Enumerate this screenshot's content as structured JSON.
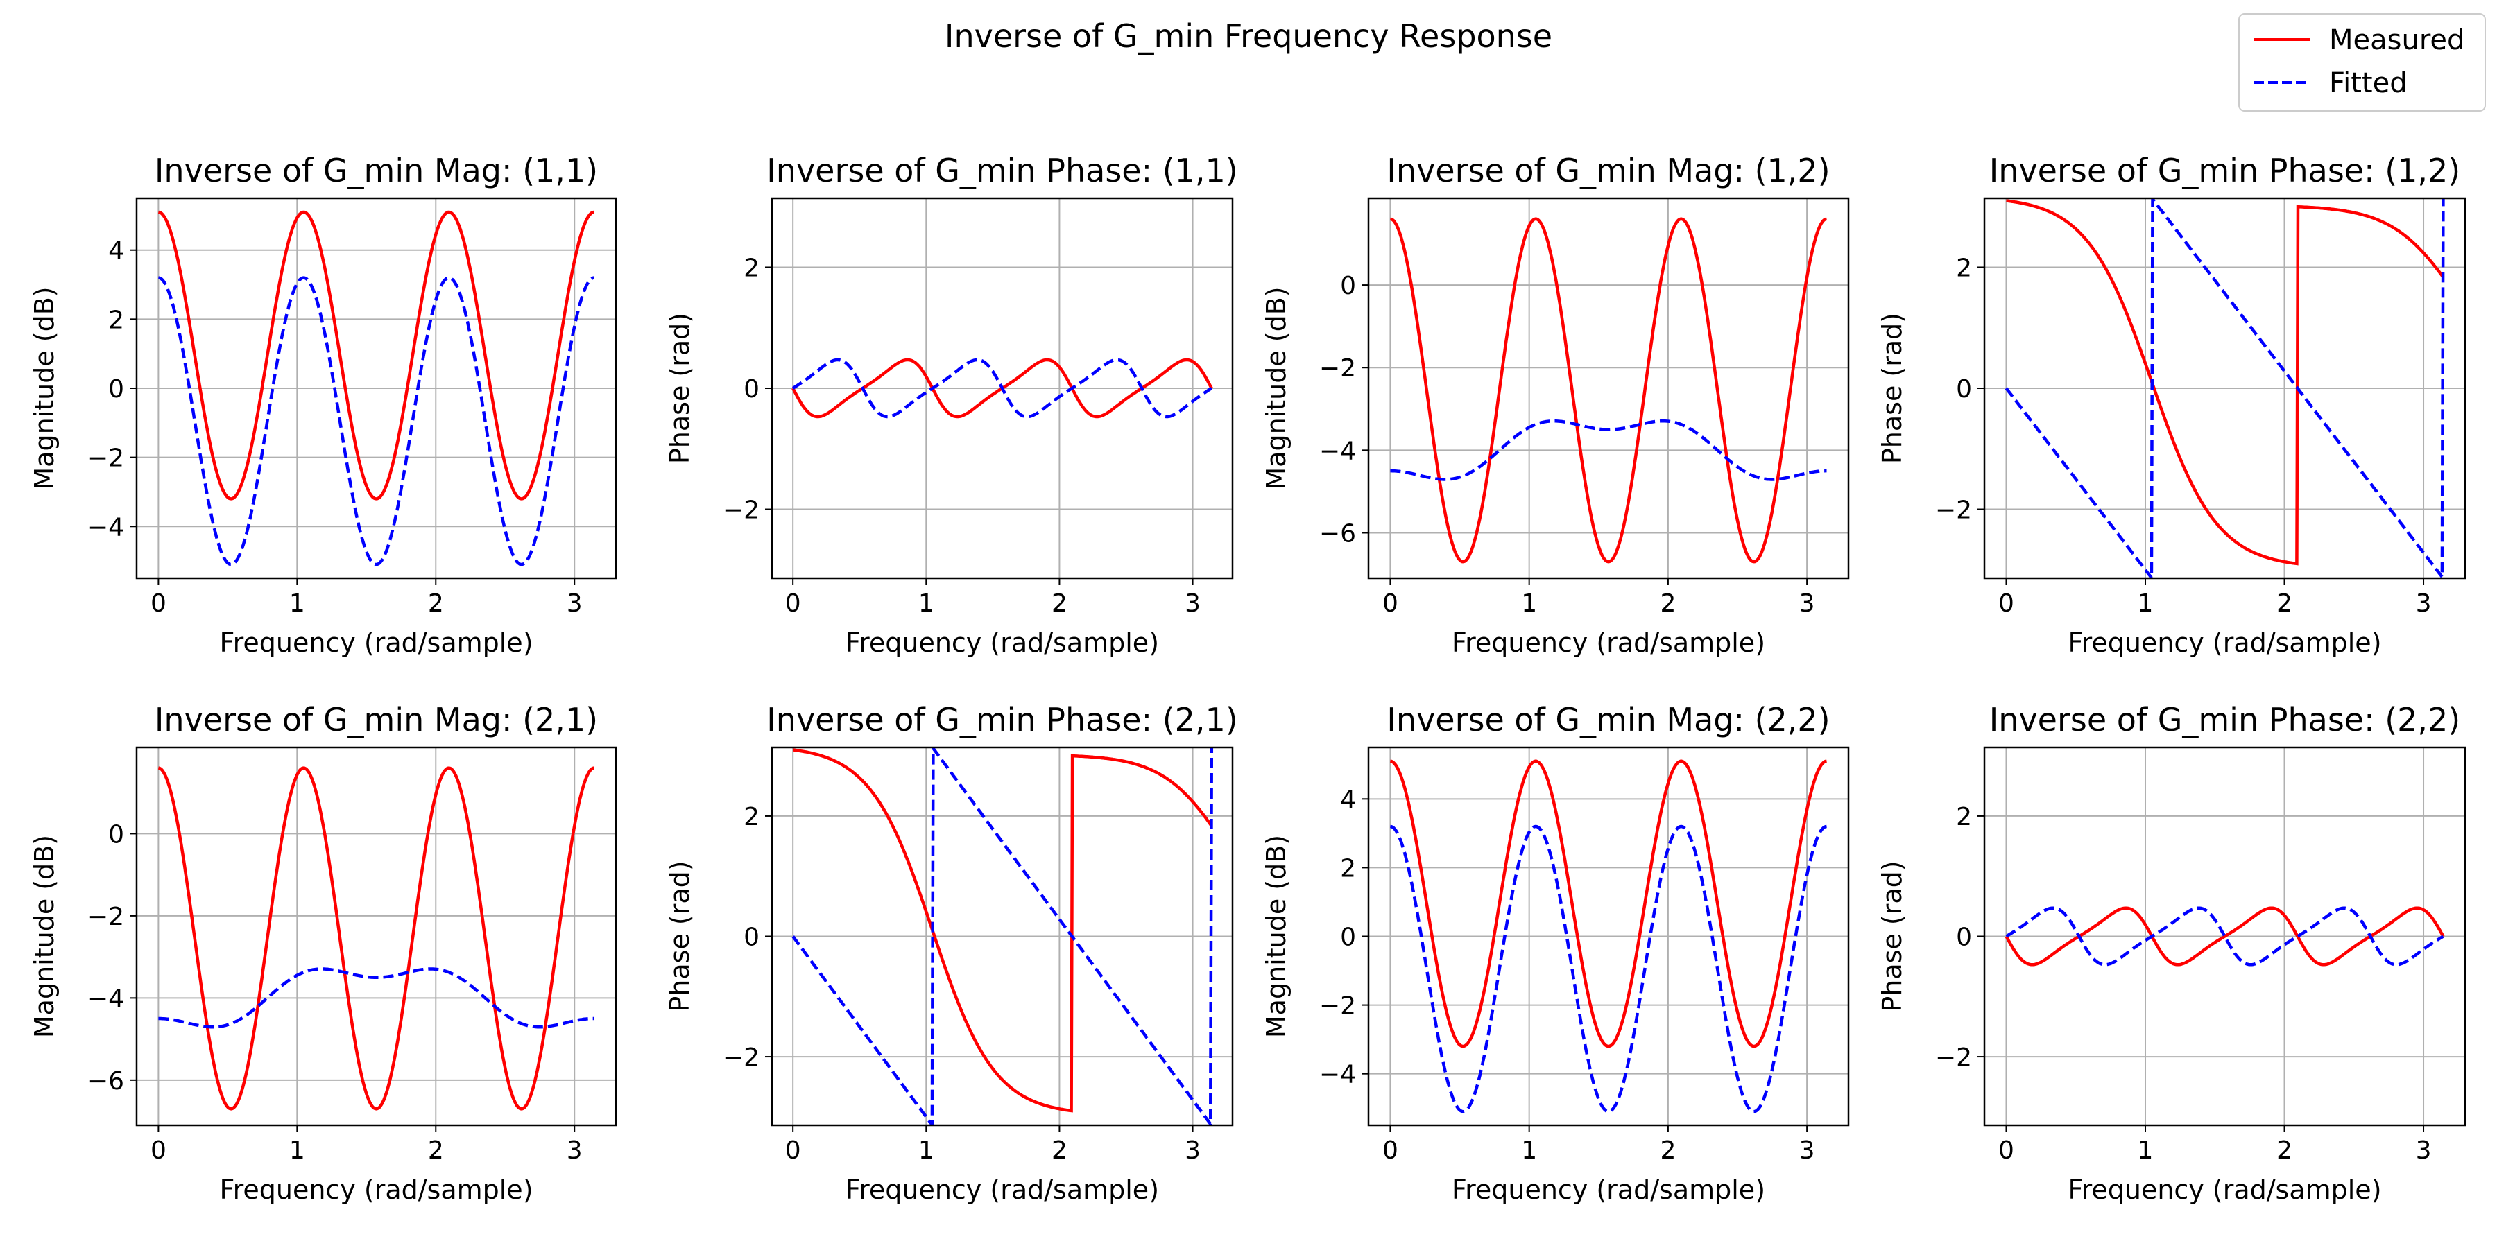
{
  "figure": {
    "title": "Inverse of G_min Frequency Response",
    "legend": {
      "placement": "top-right",
      "entries": [
        {
          "name": "Measured",
          "color": "#ff0000",
          "style": "solid"
        },
        {
          "name": "Fitted",
          "color": "#0000ff",
          "style": "dashed"
        }
      ]
    }
  },
  "chart_data": [
    {
      "type": "line",
      "title": "Inverse of G_min Mag: (1,1)",
      "xlabel": "Frequency (rad/sample)",
      "ylabel": "Magnitude (dB)",
      "xlim": [
        -0.157,
        3.299
      ],
      "ylim": [
        -5.5,
        5.5
      ],
      "xticks": [
        0,
        1,
        2,
        3
      ],
      "yticks": [
        -4,
        -2,
        0,
        2,
        4
      ],
      "grid": true,
      "series": [
        {
          "name": "Measured",
          "color": "#ff0000",
          "style": "solid",
          "curve": "cos",
          "offset": 0.95,
          "amp": 4.15,
          "cycles": 3,
          "phase": 0
        },
        {
          "name": "Fitted",
          "color": "#0000ff",
          "style": "dashed",
          "curve": "cos",
          "offset": -0.95,
          "amp": 4.15,
          "cycles": 3,
          "phase": 0
        }
      ]
    },
    {
      "type": "line",
      "title": "Inverse of G_min Phase: (1,1)",
      "xlabel": "Frequency (rad/sample)",
      "ylabel": "Phase (rad)",
      "xlim": [
        -0.157,
        3.299
      ],
      "ylim": [
        -3.14,
        3.14
      ],
      "xticks": [
        0,
        1,
        2,
        3
      ],
      "yticks": [
        -2,
        0,
        2
      ],
      "grid": true,
      "series": [
        {
          "name": "Measured",
          "color": "#ff0000",
          "style": "solid",
          "curve": "sin",
          "amp": -0.47,
          "cycles": 3,
          "skew": 0.5
        },
        {
          "name": "Fitted",
          "color": "#0000ff",
          "style": "dashed",
          "curve": "sin",
          "amp": 0.47,
          "cycles": 3,
          "skew": -0.5
        }
      ]
    },
    {
      "type": "line",
      "title": "Inverse of G_min Mag: (1,2)",
      "xlabel": "Frequency (rad/sample)",
      "ylabel": "Magnitude (dB)",
      "xlim": [
        -0.157,
        3.299
      ],
      "ylim": [
        -7.1,
        2.1
      ],
      "xticks": [
        0,
        1,
        2,
        3
      ],
      "yticks": [
        -6,
        -4,
        -2,
        0
      ],
      "grid": true,
      "series": [
        {
          "name": "Measured",
          "color": "#ff0000",
          "style": "solid",
          "curve": "cos",
          "offset": -2.55,
          "amp": 4.15,
          "cycles": 3,
          "phase": 0
        },
        {
          "name": "Fitted",
          "color": "#0000ff",
          "style": "dashed",
          "curve": "cos",
          "offset": -4.0,
          "amp": -0.75,
          "cycles": 1,
          "phase": 0,
          "ripple": 0.25,
          "rippleCycles": 3
        }
      ]
    },
    {
      "type": "line",
      "title": "Inverse of G_min Phase: (1,2)",
      "xlabel": "Frequency (rad/sample)",
      "ylabel": "Phase (rad)",
      "xlim": [
        -0.157,
        3.299
      ],
      "ylim": [
        -3.14,
        3.14
      ],
      "xticks": [
        0,
        1,
        2,
        3
      ],
      "yticks": [
        -2,
        0,
        2
      ],
      "grid": true,
      "series": [
        {
          "name": "Measured",
          "color": "#ff0000",
          "style": "solid",
          "curve": "phaseDrop",
          "start": 3.1,
          "end": 0.0
        },
        {
          "name": "Fitted",
          "color": "#0000ff",
          "style": "dashed",
          "curve": "linearWrap",
          "slope": -3.0,
          "start": 0.0
        }
      ]
    },
    {
      "type": "line",
      "title": "Inverse of G_min Mag: (2,1)",
      "xlabel": "Frequency (rad/sample)",
      "ylabel": "Magnitude (dB)",
      "xlim": [
        -0.157,
        3.299
      ],
      "ylim": [
        -7.1,
        2.1
      ],
      "xticks": [
        0,
        1,
        2,
        3
      ],
      "yticks": [
        -6,
        -4,
        -2,
        0
      ],
      "grid": true,
      "series": [
        {
          "name": "Measured",
          "color": "#ff0000",
          "style": "solid",
          "curve": "cos",
          "offset": -2.55,
          "amp": 4.15,
          "cycles": 3,
          "phase": 0
        },
        {
          "name": "Fitted",
          "color": "#0000ff",
          "style": "dashed",
          "curve": "cos",
          "offset": -4.0,
          "amp": -0.75,
          "cycles": 1,
          "phase": 0,
          "ripple": 0.25,
          "rippleCycles": 3
        }
      ]
    },
    {
      "type": "line",
      "title": "Inverse of G_min Phase: (2,1)",
      "xlabel": "Frequency (rad/sample)",
      "ylabel": "Phase (rad)",
      "xlim": [
        -0.157,
        3.299
      ],
      "ylim": [
        -3.14,
        3.14
      ],
      "xticks": [
        0,
        1,
        2,
        3
      ],
      "yticks": [
        -2,
        0,
        2
      ],
      "grid": true,
      "series": [
        {
          "name": "Measured",
          "color": "#ff0000",
          "style": "solid",
          "curve": "phaseDrop",
          "start": 3.1,
          "end": 0.0
        },
        {
          "name": "Fitted",
          "color": "#0000ff",
          "style": "dashed",
          "curve": "linearWrap",
          "slope": -3.0,
          "start": 0.0
        }
      ]
    },
    {
      "type": "line",
      "title": "Inverse of G_min Mag: (2,2)",
      "xlabel": "Frequency (rad/sample)",
      "ylabel": "Magnitude (dB)",
      "xlim": [
        -0.157,
        3.299
      ],
      "ylim": [
        -5.5,
        5.5
      ],
      "xticks": [
        0,
        1,
        2,
        3
      ],
      "yticks": [
        -4,
        -2,
        0,
        2,
        4
      ],
      "grid": true,
      "series": [
        {
          "name": "Measured",
          "color": "#ff0000",
          "style": "solid",
          "curve": "cos",
          "offset": 0.95,
          "amp": 4.15,
          "cycles": 3,
          "phase": 0
        },
        {
          "name": "Fitted",
          "color": "#0000ff",
          "style": "dashed",
          "curve": "cos",
          "offset": -0.95,
          "amp": 4.15,
          "cycles": 3,
          "phase": 0
        }
      ]
    },
    {
      "type": "line",
      "title": "Inverse of G_min Phase: (2,2)",
      "xlabel": "Frequency (rad/sample)",
      "ylabel": "Phase (rad)",
      "xlim": [
        -0.157,
        3.299
      ],
      "ylim": [
        -3.14,
        3.14
      ],
      "xticks": [
        0,
        1,
        2,
        3
      ],
      "yticks": [
        -2,
        0,
        2
      ],
      "grid": true,
      "series": [
        {
          "name": "Measured",
          "color": "#ff0000",
          "style": "solid",
          "curve": "sin",
          "amp": -0.47,
          "cycles": 3,
          "skew": 0.5
        },
        {
          "name": "Fitted",
          "color": "#0000ff",
          "style": "dashed",
          "curve": "sin",
          "amp": 0.47,
          "cycles": 3,
          "skew": -0.5
        }
      ]
    }
  ]
}
